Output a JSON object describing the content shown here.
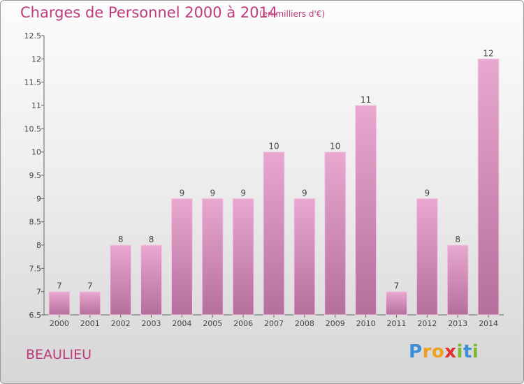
{
  "chart_data": {
    "type": "bar",
    "title": "Charges de Personnel 2000 à 2014",
    "subtitle": "(en milliers d'€)",
    "categories": [
      "2000",
      "2001",
      "2002",
      "2003",
      "2004",
      "2005",
      "2006",
      "2007",
      "2008",
      "2009",
      "2010",
      "2011",
      "2012",
      "2013",
      "2014"
    ],
    "values": [
      7,
      7,
      8,
      8,
      9,
      9,
      9,
      10,
      9,
      10,
      11,
      7,
      9,
      8,
      12
    ],
    "ylim": [
      6.5,
      12.5
    ],
    "yticks": [
      "6.5",
      "7",
      "7.5",
      "8",
      "8.5",
      "9",
      "9.5",
      "10",
      "10.5",
      "11",
      "11.5",
      "12",
      "12.5"
    ],
    "grid": false,
    "bar_color": "#d48fba"
  },
  "place": "BEAULIEU",
  "logo": {
    "text": "Proxiti",
    "letters": [
      "P",
      "r",
      "o",
      "x",
      "i",
      "t",
      "i"
    ],
    "colors": [
      "#3a8fd8",
      "#f0a020",
      "#f0a020",
      "#e03030",
      "#7ab830",
      "#3a8fd8",
      "#7ab830"
    ]
  }
}
